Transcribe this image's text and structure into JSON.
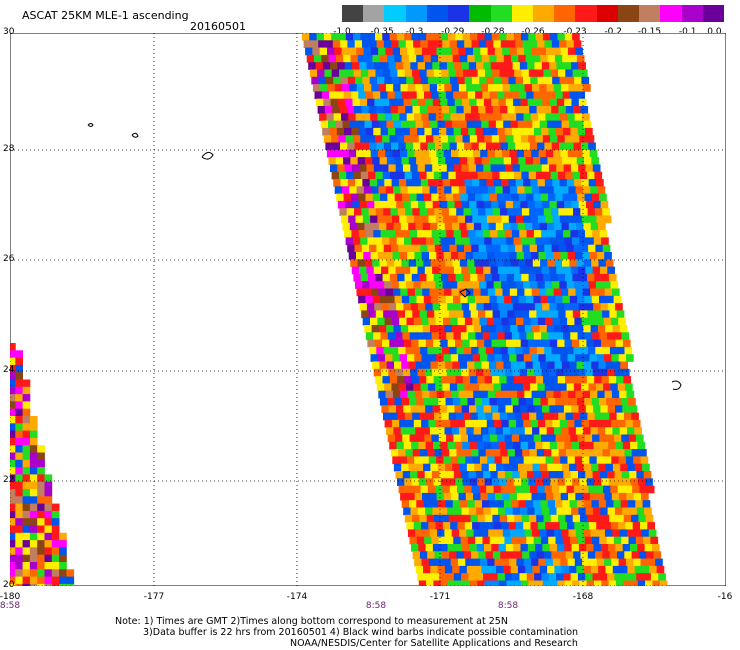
{
  "header": {
    "title": "ASCAT 25KM MLE-1 ascending",
    "date": "20160501"
  },
  "colorbar": {
    "colors": [
      "#434343",
      "#a3a3a3",
      "#00ccff",
      "#0099ff",
      "#0055ee",
      "#1a33e6",
      "#00bb00",
      "#22dd22",
      "#ffee00",
      "#ffaa00",
      "#ff6600",
      "#ff1a1a",
      "#dd0000",
      "#8b4513",
      "#c08060",
      "#ff00ff",
      "#aa00cc",
      "#6a0099"
    ],
    "tick_labels": [
      "-1.0",
      "-0.35",
      "-0.3",
      "-0.29",
      "-0.28",
      "-0.26",
      "-0.23",
      "-0.2",
      "-0.15",
      "-0.1",
      "0.0"
    ]
  },
  "axes": {
    "lat_labels": [
      "30",
      "28",
      "26",
      "24",
      "22",
      "20"
    ],
    "lon_labels": [
      "-180",
      "-177",
      "-174",
      "-171",
      "-168",
      "-16"
    ],
    "time_labels": [
      "8:58",
      "8:58",
      "8:58"
    ]
  },
  "notes": {
    "line1": "Note: 1) Times are GMT 2)Times along bottom correspond to measurement at 25N",
    "line2": "3)Data buffer is 22 hrs from 20160501 4) Black wind barbs indicate possible contamination",
    "line3": "NOAA/NESDIS/Center for Satellite Applications and Research"
  },
  "map": {
    "grid_color": "#000000",
    "swath_colors": {
      "blue": [
        "#0066ff",
        "#0055ee",
        "#0088ff",
        "#1a33e6",
        "#00aaff"
      ],
      "warm": [
        "#ffee00",
        "#ffaa00",
        "#ff6600",
        "#ff1a1a",
        "#22dd22",
        "#0055ee"
      ],
      "purple": [
        "#ff00ff",
        "#aa00cc",
        "#6a0099",
        "#8b4513",
        "#c08060",
        "#ff1a1a",
        "#ffee00"
      ]
    }
  }
}
